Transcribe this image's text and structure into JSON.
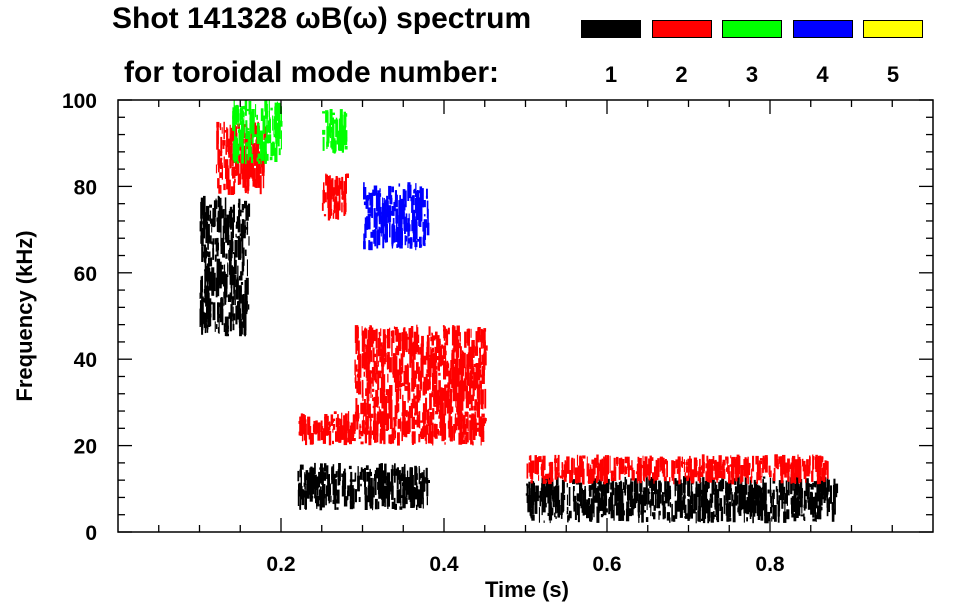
{
  "chart_data": {
    "type": "heatmap",
    "title_line1": "Shot 141328 ωB(ω) spectrum",
    "title_line2": "for toroidal mode number:",
    "xlabel": "Time (s)",
    "ylabel": "Frequency (kHz)",
    "xlim": [
      0.0,
      1.0
    ],
    "ylim": [
      0,
      100
    ],
    "x_ticks": [
      0.2,
      0.4,
      0.6,
      0.8
    ],
    "x_tick_labels": [
      "0.2",
      "0.4",
      "0.6",
      "0.8"
    ],
    "y_ticks": [
      0,
      20,
      40,
      60,
      80,
      100
    ],
    "y_tick_labels": [
      "0",
      "20",
      "40",
      "60",
      "80",
      "100"
    ],
    "legend": [
      {
        "mode": "1",
        "color": "#000000"
      },
      {
        "mode": "2",
        "color": "#ff0000"
      },
      {
        "mode": "3",
        "color": "#00ff00"
      },
      {
        "mode": "4",
        "color": "#0000ff"
      },
      {
        "mode": "5",
        "color": "#ffff00"
      }
    ],
    "features": [
      {
        "mode": "1",
        "t_start": 0.1,
        "t_end": 0.16,
        "f_low": 45,
        "f_high": 78
      },
      {
        "mode": "2",
        "t_start": 0.12,
        "t_end": 0.18,
        "f_low": 78,
        "f_high": 95
      },
      {
        "mode": "3",
        "t_start": 0.14,
        "t_end": 0.2,
        "f_low": 85,
        "f_high": 100
      },
      {
        "mode": "1",
        "t_start": 0.22,
        "t_end": 0.38,
        "f_low": 5,
        "f_high": 16
      },
      {
        "mode": "2",
        "t_start": 0.22,
        "t_end": 0.45,
        "f_low": 20,
        "f_high": 28
      },
      {
        "mode": "2",
        "t_start": 0.25,
        "t_end": 0.28,
        "f_low": 72,
        "f_high": 83
      },
      {
        "mode": "3",
        "t_start": 0.25,
        "t_end": 0.28,
        "f_low": 87,
        "f_high": 98
      },
      {
        "mode": "2",
        "t_start": 0.29,
        "t_end": 0.45,
        "f_low": 25,
        "f_high": 48
      },
      {
        "mode": "4",
        "t_start": 0.3,
        "t_end": 0.38,
        "f_low": 65,
        "f_high": 81
      },
      {
        "mode": "1",
        "t_start": 0.5,
        "t_end": 0.88,
        "f_low": 2,
        "f_high": 13
      },
      {
        "mode": "2",
        "t_start": 0.5,
        "t_end": 0.87,
        "f_low": 11,
        "f_high": 18
      }
    ]
  }
}
